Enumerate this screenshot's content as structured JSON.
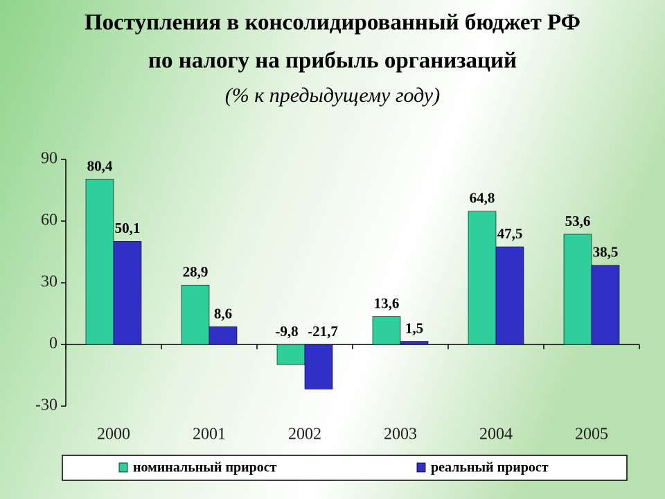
{
  "chart_data": {
    "type": "bar",
    "title": [
      "Поступления в консолидированный бюджет РФ",
      "по налогу на прибыль организаций"
    ],
    "subtitle": "(% к предыдущему году)",
    "categories": [
      "2000",
      "2001",
      "2002",
      "2003",
      "2004",
      "2005"
    ],
    "series": [
      {
        "name": "номинальный прирост",
        "color": "#2fcf9c",
        "values": [
          80.4,
          28.9,
          -9.8,
          13.6,
          64.8,
          53.6
        ],
        "value_labels": [
          "80,4",
          "28,9",
          "-9,8",
          "13,6",
          "64,8",
          "53,6"
        ]
      },
      {
        "name": "реальный прирост",
        "color": "#3030c8",
        "values": [
          50.1,
          8.6,
          -21.7,
          1.5,
          47.5,
          38.5
        ],
        "value_labels": [
          "50,1",
          "8,6",
          "-21,7",
          "1,5",
          "47,5",
          "38,5"
        ]
      }
    ],
    "ylim": [
      -30,
      90
    ],
    "yticks": [
      -30,
      0,
      30,
      60,
      90
    ],
    "grid": false,
    "legend": "bottom"
  }
}
